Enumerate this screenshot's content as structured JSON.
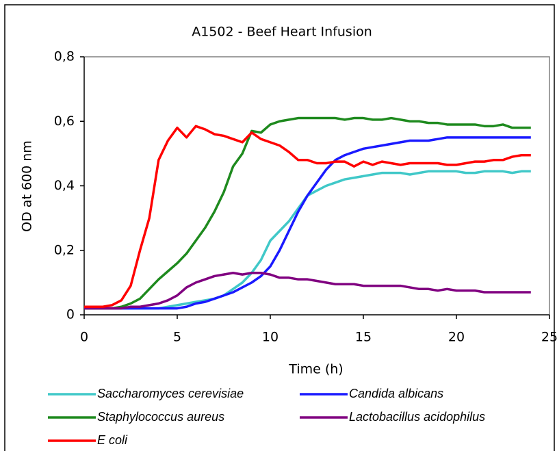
{
  "chart_data": {
    "type": "line",
    "title": "A1502 - Beef Heart Infusion",
    "xlabel": "Time (h)",
    "ylabel": "OD at 600 nm",
    "x": [
      0,
      0.5,
      1,
      1.5,
      2,
      2.5,
      3,
      3.5,
      4,
      4.5,
      5,
      5.5,
      6,
      6.5,
      7,
      7.5,
      8,
      8.5,
      9,
      9.5,
      10,
      10.5,
      11,
      11.5,
      12,
      12.5,
      13,
      13.5,
      14,
      14.5,
      15,
      15.5,
      16,
      16.5,
      17,
      17.5,
      18,
      18.5,
      19,
      19.5,
      20,
      20.5,
      21,
      21.5,
      22,
      22.5,
      23,
      23.5,
      24
    ],
    "series": [
      {
        "name": "Saccharomyces cerevisiae",
        "color": "#40c8c8",
        "values": [
          0.02,
          0.02,
          0.02,
          0.02,
          0.02,
          0.02,
          0.02,
          0.02,
          0.02,
          0.025,
          0.03,
          0.035,
          0.04,
          0.045,
          0.05,
          0.06,
          0.08,
          0.1,
          0.13,
          0.17,
          0.23,
          0.26,
          0.29,
          0.33,
          0.37,
          0.385,
          0.4,
          0.41,
          0.42,
          0.425,
          0.43,
          0.435,
          0.44,
          0.44,
          0.44,
          0.435,
          0.44,
          0.445,
          0.445,
          0.445,
          0.445,
          0.44,
          0.44,
          0.445,
          0.445,
          0.445,
          0.44,
          0.445,
          0.445
        ]
      },
      {
        "name": "Candida albicans",
        "color": "#1a1aff",
        "values": [
          0.02,
          0.02,
          0.02,
          0.02,
          0.02,
          0.02,
          0.02,
          0.02,
          0.02,
          0.02,
          0.02,
          0.025,
          0.035,
          0.04,
          0.05,
          0.06,
          0.07,
          0.085,
          0.1,
          0.12,
          0.15,
          0.2,
          0.26,
          0.32,
          0.37,
          0.41,
          0.45,
          0.48,
          0.495,
          0.505,
          0.515,
          0.52,
          0.525,
          0.53,
          0.535,
          0.54,
          0.54,
          0.54,
          0.545,
          0.55,
          0.55,
          0.55,
          0.55,
          0.55,
          0.55,
          0.55,
          0.55,
          0.55,
          0.55
        ]
      },
      {
        "name": "Staphylococcus aureus",
        "color": "#1e8a1e",
        "values": [
          0.02,
          0.02,
          0.02,
          0.02,
          0.025,
          0.035,
          0.05,
          0.08,
          0.11,
          0.135,
          0.16,
          0.19,
          0.23,
          0.27,
          0.32,
          0.38,
          0.46,
          0.5,
          0.57,
          0.565,
          0.59,
          0.6,
          0.605,
          0.61,
          0.61,
          0.61,
          0.61,
          0.61,
          0.605,
          0.61,
          0.61,
          0.605,
          0.605,
          0.61,
          0.605,
          0.6,
          0.6,
          0.595,
          0.595,
          0.59,
          0.59,
          0.59,
          0.59,
          0.585,
          0.585,
          0.59,
          0.58,
          0.58,
          0.58
        ]
      },
      {
        "name": "Lactobacillus acidophilus",
        "color": "#800080",
        "values": [
          0.02,
          0.02,
          0.02,
          0.02,
          0.02,
          0.025,
          0.025,
          0.03,
          0.035,
          0.045,
          0.06,
          0.085,
          0.1,
          0.11,
          0.12,
          0.125,
          0.13,
          0.125,
          0.13,
          0.13,
          0.125,
          0.115,
          0.115,
          0.11,
          0.11,
          0.105,
          0.1,
          0.095,
          0.095,
          0.095,
          0.09,
          0.09,
          0.09,
          0.09,
          0.09,
          0.085,
          0.08,
          0.08,
          0.075,
          0.08,
          0.075,
          0.075,
          0.075,
          0.07,
          0.07,
          0.07,
          0.07,
          0.07,
          0.07
        ]
      },
      {
        "name": "E coli",
        "color": "#ff0000",
        "values": [
          0.025,
          0.025,
          0.025,
          0.03,
          0.045,
          0.09,
          0.2,
          0.3,
          0.48,
          0.54,
          0.58,
          0.55,
          0.585,
          0.575,
          0.56,
          0.555,
          0.545,
          0.535,
          0.565,
          0.545,
          0.535,
          0.525,
          0.505,
          0.48,
          0.48,
          0.47,
          0.47,
          0.475,
          0.475,
          0.46,
          0.475,
          0.465,
          0.475,
          0.47,
          0.465,
          0.47,
          0.47,
          0.47,
          0.47,
          0.465,
          0.465,
          0.47,
          0.475,
          0.475,
          0.48,
          0.48,
          0.49,
          0.495,
          0.495
        ]
      }
    ],
    "xlim": [
      0,
      25
    ],
    "xticks": [
      0,
      5,
      10,
      15,
      20,
      25
    ],
    "ylim": [
      0,
      0.8
    ],
    "yticks": [
      0,
      {
        "value": 0.2,
        "label": "0,2"
      },
      {
        "value": 0.4,
        "label": "0,4"
      },
      {
        "value": 0.6,
        "label": "0,6"
      },
      {
        "value": 0.8,
        "label": "0,8"
      }
    ],
    "grid": false
  }
}
